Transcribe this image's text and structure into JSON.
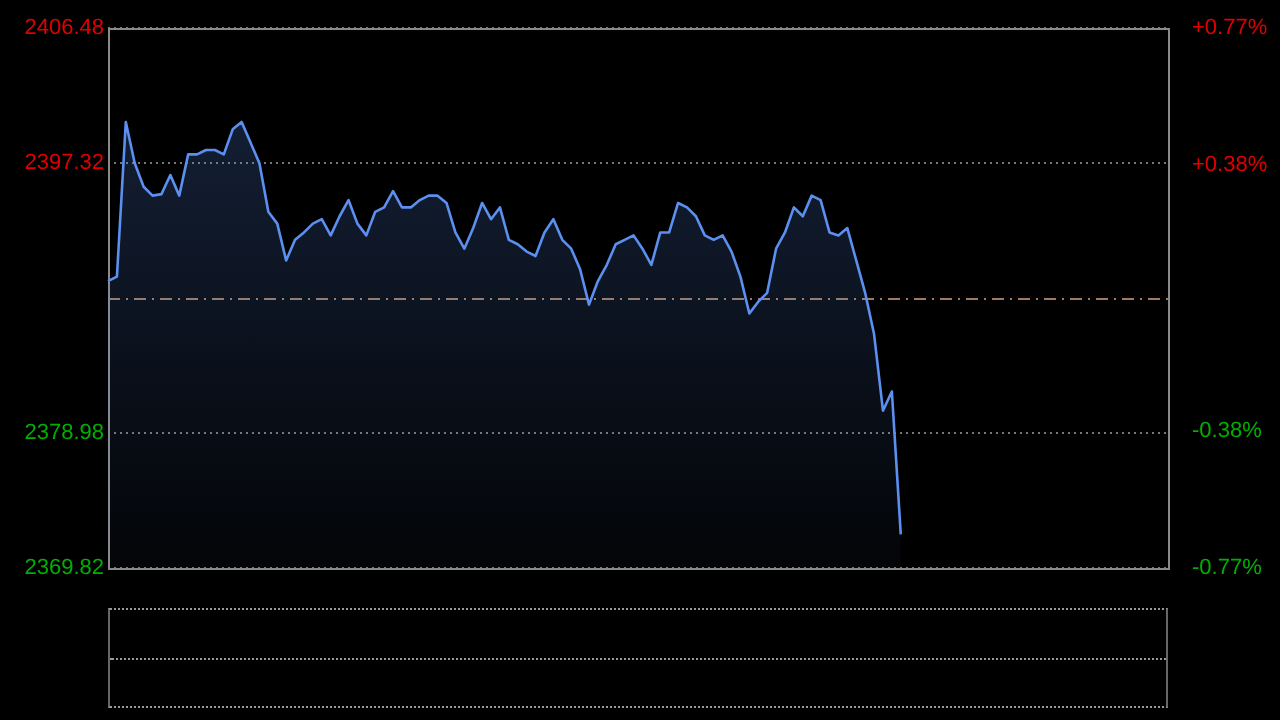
{
  "chart_data": {
    "type": "area",
    "categories": [
      null,
      null,
      null,
      null,
      null,
      null,
      null,
      null,
      null,
      null,
      null,
      null,
      null,
      null,
      null,
      null,
      null,
      null,
      null,
      null,
      null,
      null,
      null,
      null,
      null,
      null,
      null,
      null,
      null,
      null,
      null,
      null,
      null,
      null,
      null,
      null,
      null,
      null,
      null,
      null,
      null,
      null,
      null,
      null,
      null,
      null,
      null,
      null,
      null,
      null,
      null,
      null,
      null,
      null,
      null,
      null,
      null,
      null,
      null,
      null,
      null,
      null,
      null,
      null,
      null,
      null,
      null,
      null,
      null,
      null,
      null,
      null,
      null,
      null,
      null,
      null,
      null,
      null,
      null,
      null,
      null,
      null,
      null,
      null,
      null,
      null,
      null,
      null,
      null,
      null,
      null,
      null,
      null,
      null,
      null,
      null,
      null,
      null,
      null,
      null,
      null,
      null,
      null,
      null,
      null,
      null,
      null,
      null,
      null,
      null,
      null,
      null,
      null,
      null,
      null,
      null,
      null,
      null,
      null,
      null
    ],
    "series": [
      {
        "color": "#5b8ff0",
        "values": [
          2389.3,
          2389.6,
          2400.1,
          2397.3,
          2395.7,
          2395.1,
          2395.2,
          2396.5,
          2395.1,
          2397.9,
          2397.9,
          2398.2,
          2398.2,
          2397.9,
          2399.6,
          2400.1,
          2398.7,
          2397.3,
          2394.0,
          2393.2,
          2390.7,
          2392.1,
          2392.6,
          2393.2,
          2393.5,
          2392.4,
          2393.7,
          2394.8,
          2393.2,
          2392.4,
          2394.0,
          2394.3,
          2395.4,
          2394.3,
          2394.3,
          2394.8,
          2395.1,
          2395.1,
          2394.6,
          2392.6,
          2391.5,
          2392.9,
          2394.6,
          2393.5,
          2394.3,
          2392.1,
          2391.8,
          2391.3,
          2391.0,
          2392.6,
          2393.5,
          2392.1,
          2391.5,
          2390.1,
          2387.7,
          2389.3,
          2390.4,
          2391.8,
          2392.1,
          2392.4,
          2391.5,
          2390.4,
          2392.6,
          2392.6,
          2394.6,
          2394.3,
          2393.7,
          2392.4,
          2392.1,
          2392.4,
          2391.3,
          2389.6,
          2387.1,
          2387.9,
          2388.5,
          2391.5,
          2392.6,
          2394.3,
          2393.7,
          2395.1,
          2394.8,
          2392.6,
          2392.4,
          2392.9,
          2390.7,
          2388.5,
          2385.7,
          2380.5,
          2381.8,
          2372.1,
          null,
          null,
          null,
          null,
          null,
          null,
          null,
          null,
          null,
          null,
          null,
          null,
          null,
          null,
          null,
          null,
          null,
          null,
          null,
          null,
          null,
          null,
          null,
          null,
          null,
          null,
          null,
          null,
          null,
          null
        ]
      }
    ],
    "ylim": [
      2369.82,
      2406.48
    ],
    "yticks": [
      2369.82,
      2378.98,
      2397.32,
      2406.48
    ],
    "y2lim": [
      -0.77,
      0.77
    ],
    "y2ticks": [
      {
        "value": -0.77,
        "label": "-0.77%"
      },
      {
        "value": -0.38,
        "label": "-0.38%"
      },
      {
        "value": 0.38,
        "label": "+0.38%"
      },
      {
        "value": 0.77,
        "label": "+0.77%"
      }
    ],
    "ref_lines": [
      {
        "axis": "y",
        "value": 2388.15,
        "color": "#a07a60",
        "line_style": "dashdot"
      }
    ],
    "grid": "y",
    "legend": false,
    "tick_labels": "y",
    "marker": "none",
    "line_style": "solid"
  }
}
